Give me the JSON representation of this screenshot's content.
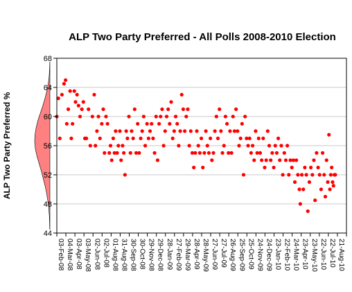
{
  "chart_data": {
    "type": "scatter",
    "title": "ALP Two Party Preferred - All Polls 2008-2010 Election",
    "xlabel": "",
    "ylabel": "ALP Two Party Preferred %",
    "ylim": [
      44,
      68
    ],
    "yticks": [
      44,
      48,
      52,
      56,
      60,
      64,
      68
    ],
    "xlim": [
      "2008-02-03",
      "2010-09-20"
    ],
    "xtick_labels": [
      "03-Feb-08",
      "04-Mar-08",
      "03-Apr-08",
      "03-May-08",
      "02-Jun-08",
      "02-Jul-08",
      "01-Aug-08",
      "31-Aug-08",
      "30-Sep-08",
      "30-Oct-08",
      "29-Nov-08",
      "29-Dec-08",
      "28-Jan-09",
      "27-Feb-09",
      "29-Mar-09",
      "28-Apr-09",
      "28-May-09",
      "27-Jun-09",
      "27-Jul-09",
      "26-Aug-09",
      "25-Sep-09",
      "25-Oct-09",
      "24-Nov-09",
      "24-Dec-09",
      "23-Jan-10",
      "22-Feb-10",
      "24-Mar-10",
      "23-Apr-10",
      "23-May-10",
      "22-Jun-10",
      "22-Jul-10",
      "21-Aug-10"
    ],
    "grid": true,
    "point_color": "#ff0000",
    "density_color": "#ff8080",
    "series": [
      {
        "points": [
          [
            "2008-02-03",
            60
          ],
          [
            "2008-02-08",
            62.5
          ],
          [
            "2008-02-13",
            57
          ],
          [
            "2008-02-20",
            63
          ],
          [
            "2008-02-27",
            64.5
          ],
          [
            "2008-03-03",
            65
          ],
          [
            "2008-03-07",
            59
          ],
          [
            "2008-03-12",
            61
          ],
          [
            "2008-03-18",
            63.5
          ],
          [
            "2008-03-22",
            57
          ],
          [
            "2008-03-26",
            59
          ],
          [
            "2008-04-01",
            63.5
          ],
          [
            "2008-04-05",
            62
          ],
          [
            "2008-04-10",
            63
          ],
          [
            "2008-04-15",
            61.5
          ],
          [
            "2008-04-20",
            60
          ],
          [
            "2008-04-26",
            61
          ],
          [
            "2008-05-01",
            62
          ],
          [
            "2008-05-06",
            57
          ],
          [
            "2008-05-11",
            57
          ],
          [
            "2008-05-18",
            61
          ],
          [
            "2008-05-24",
            56
          ],
          [
            "2008-05-31",
            60
          ],
          [
            "2008-06-06",
            63
          ],
          [
            "2008-06-10",
            56
          ],
          [
            "2008-06-15",
            58
          ],
          [
            "2008-06-20",
            60
          ],
          [
            "2008-06-25",
            57
          ],
          [
            "2008-07-01",
            59
          ],
          [
            "2008-07-06",
            61
          ],
          [
            "2008-07-10",
            55
          ],
          [
            "2008-07-15",
            60
          ],
          [
            "2008-07-20",
            59
          ],
          [
            "2008-07-26",
            55
          ],
          [
            "2008-07-30",
            56
          ],
          [
            "2008-08-03",
            54
          ],
          [
            "2008-08-08",
            57
          ],
          [
            "2008-08-12",
            55
          ],
          [
            "2008-08-16",
            58
          ],
          [
            "2008-08-21",
            55
          ],
          [
            "2008-08-25",
            56
          ],
          [
            "2008-08-30",
            58
          ],
          [
            "2008-09-03",
            54
          ],
          [
            "2008-09-08",
            56
          ],
          [
            "2008-09-12",
            55
          ],
          [
            "2008-09-16",
            52
          ],
          [
            "2008-09-20",
            58
          ],
          [
            "2008-09-24",
            57
          ],
          [
            "2008-09-29",
            60
          ],
          [
            "2008-10-04",
            55
          ],
          [
            "2008-10-08",
            58
          ],
          [
            "2008-10-13",
            57
          ],
          [
            "2008-10-18",
            61
          ],
          [
            "2008-10-23",
            55
          ],
          [
            "2008-10-28",
            59
          ],
          [
            "2008-11-02",
            55
          ],
          [
            "2008-11-07",
            57
          ],
          [
            "2008-11-12",
            58
          ],
          [
            "2008-11-17",
            60
          ],
          [
            "2008-11-22",
            56
          ],
          [
            "2008-11-28",
            59
          ],
          [
            "2008-12-03",
            57
          ],
          [
            "2008-12-08",
            58
          ],
          [
            "2008-12-13",
            59
          ],
          [
            "2008-12-18",
            57
          ],
          [
            "2008-12-23",
            55
          ],
          [
            "2008-12-28",
            60
          ],
          [
            "2009-01-02",
            54
          ],
          [
            "2009-01-07",
            59
          ],
          [
            "2009-01-12",
            60
          ],
          [
            "2009-01-17",
            61
          ],
          [
            "2009-01-22",
            56
          ],
          [
            "2009-01-27",
            58
          ],
          [
            "2009-02-01",
            60
          ],
          [
            "2009-02-06",
            61
          ],
          [
            "2009-02-11",
            59
          ],
          [
            "2009-02-16",
            62
          ],
          [
            "2009-02-21",
            57
          ],
          [
            "2009-02-26",
            58
          ],
          [
            "2009-03-03",
            60
          ],
          [
            "2009-03-08",
            59
          ],
          [
            "2009-03-13",
            56
          ],
          [
            "2009-03-18",
            58
          ],
          [
            "2009-03-23",
            63
          ],
          [
            "2009-03-28",
            61
          ],
          [
            "2009-04-02",
            58
          ],
          [
            "2009-04-07",
            60
          ],
          [
            "2009-04-12",
            61
          ],
          [
            "2009-04-17",
            56
          ],
          [
            "2009-04-22",
            58
          ],
          [
            "2009-04-27",
            55
          ],
          [
            "2009-05-02",
            53
          ],
          [
            "2009-05-07",
            55
          ],
          [
            "2009-05-12",
            58
          ],
          [
            "2009-05-17",
            56
          ],
          [
            "2009-05-22",
            55
          ],
          [
            "2009-05-27",
            57
          ],
          [
            "2009-06-01",
            53
          ],
          [
            "2009-06-06",
            55
          ],
          [
            "2009-06-11",
            58
          ],
          [
            "2009-06-16",
            56
          ],
          [
            "2009-06-21",
            55
          ],
          [
            "2009-06-26",
            57
          ],
          [
            "2009-07-01",
            54
          ],
          [
            "2009-07-06",
            55
          ],
          [
            "2009-07-11",
            58
          ],
          [
            "2009-07-16",
            60
          ],
          [
            "2009-07-21",
            57
          ],
          [
            "2009-07-26",
            61
          ],
          [
            "2009-07-31",
            58
          ],
          [
            "2009-08-05",
            55
          ],
          [
            "2009-08-10",
            56
          ],
          [
            "2009-08-15",
            60
          ],
          [
            "2009-08-20",
            59
          ],
          [
            "2009-08-25",
            55
          ],
          [
            "2009-08-30",
            58
          ],
          [
            "2009-09-04",
            55
          ],
          [
            "2009-09-09",
            60
          ],
          [
            "2009-09-14",
            58
          ],
          [
            "2009-09-19",
            61
          ],
          [
            "2009-09-24",
            58
          ],
          [
            "2009-09-29",
            56
          ],
          [
            "2009-10-04",
            57
          ],
          [
            "2009-10-09",
            59
          ],
          [
            "2009-10-14",
            52
          ],
          [
            "2009-10-19",
            60
          ],
          [
            "2009-10-24",
            57
          ],
          [
            "2009-10-29",
            56
          ],
          [
            "2009-11-03",
            57
          ],
          [
            "2009-11-08",
            55
          ],
          [
            "2009-11-13",
            56
          ],
          [
            "2009-11-18",
            54
          ],
          [
            "2009-11-23",
            58
          ],
          [
            "2009-11-28",
            55
          ],
          [
            "2009-12-03",
            57
          ],
          [
            "2009-12-08",
            55
          ],
          [
            "2009-12-13",
            54
          ],
          [
            "2009-12-18",
            57
          ],
          [
            "2009-12-23",
            53
          ],
          [
            "2009-12-28",
            54
          ],
          [
            "2010-01-02",
            58
          ],
          [
            "2010-01-07",
            56
          ],
          [
            "2010-01-12",
            54
          ],
          [
            "2010-01-17",
            55
          ],
          [
            "2010-01-22",
            53
          ],
          [
            "2010-01-27",
            56
          ],
          [
            "2010-02-01",
            55
          ],
          [
            "2010-02-06",
            57
          ],
          [
            "2010-02-11",
            54
          ],
          [
            "2010-02-16",
            56
          ],
          [
            "2010-02-21",
            52
          ],
          [
            "2010-02-26",
            55
          ],
          [
            "2010-03-03",
            54
          ],
          [
            "2010-03-08",
            56
          ],
          [
            "2010-03-13",
            52
          ],
          [
            "2010-03-18",
            54
          ],
          [
            "2010-03-23",
            53
          ],
          [
            "2010-03-28",
            54
          ],
          [
            "2010-04-02",
            51
          ],
          [
            "2010-04-07",
            54
          ],
          [
            "2010-04-12",
            52
          ],
          [
            "2010-04-17",
            50
          ],
          [
            "2010-04-20",
            48
          ],
          [
            "2010-04-25",
            52
          ],
          [
            "2010-04-30",
            50
          ],
          [
            "2010-05-05",
            53
          ],
          [
            "2010-05-10",
            52
          ],
          [
            "2010-05-15",
            47
          ],
          [
            "2010-05-20",
            51
          ],
          [
            "2010-05-25",
            53
          ],
          [
            "2010-05-30",
            52
          ],
          [
            "2010-06-04",
            54
          ],
          [
            "2010-06-08",
            48.5
          ],
          [
            "2010-06-13",
            55
          ],
          [
            "2010-06-18",
            53
          ],
          [
            "2010-06-23",
            52
          ],
          [
            "2010-06-28",
            50
          ],
          [
            "2010-07-03",
            55
          ],
          [
            "2010-07-08",
            52
          ],
          [
            "2010-07-12",
            49
          ],
          [
            "2010-07-16",
            54
          ],
          [
            "2010-07-20",
            51
          ],
          [
            "2010-07-24",
            57.5
          ],
          [
            "2010-07-27",
            50
          ],
          [
            "2010-07-30",
            52
          ],
          [
            "2010-08-02",
            53
          ],
          [
            "2010-08-05",
            51
          ],
          [
            "2010-08-08",
            50.5
          ],
          [
            "2010-08-11",
            52
          ],
          [
            "2010-08-14",
            52
          ]
        ]
      }
    ],
    "density": [
      [
        44.5,
        0.01
      ],
      [
        45.5,
        0.02
      ],
      [
        46.5,
        0.04
      ],
      [
        47.5,
        0.08
      ],
      [
        48.5,
        0.14
      ],
      [
        49.5,
        0.22
      ],
      [
        50.5,
        0.32
      ],
      [
        51.5,
        0.44
      ],
      [
        52.5,
        0.56
      ],
      [
        53.5,
        0.7
      ],
      [
        54.5,
        0.84
      ],
      [
        55.5,
        0.95
      ],
      [
        56.5,
        1.0
      ],
      [
        57.5,
        0.98
      ],
      [
        58.5,
        0.9
      ],
      [
        59.5,
        0.78
      ],
      [
        60.5,
        0.62
      ],
      [
        61.5,
        0.46
      ],
      [
        62.5,
        0.32
      ],
      [
        63.5,
        0.2
      ],
      [
        64.5,
        0.11
      ],
      [
        65.5,
        0.05
      ],
      [
        66.5,
        0.02
      ],
      [
        67.5,
        0.005
      ]
    ]
  }
}
